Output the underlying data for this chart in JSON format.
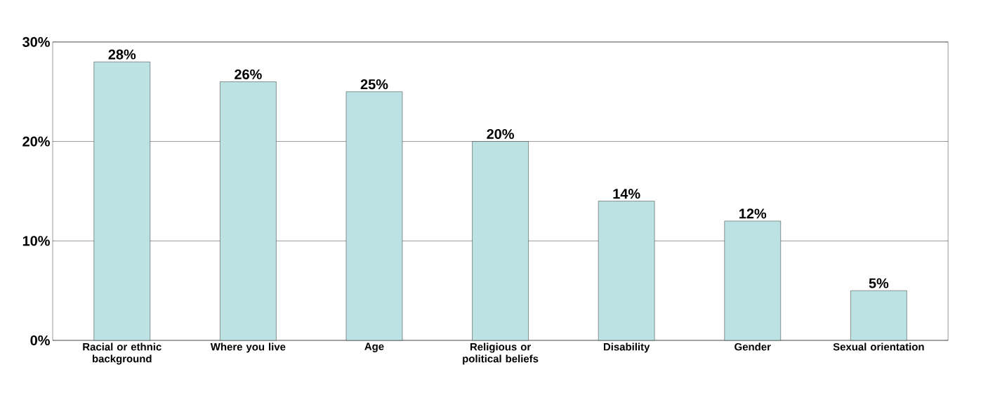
{
  "chart_data": {
    "type": "bar",
    "categories": [
      "Racial or ethnic background",
      "Where you live",
      "Age",
      "Religious or political beliefs",
      "Disability",
      "Gender",
      "Sexual orientation"
    ],
    "values": [
      28,
      26,
      25,
      20,
      14,
      12,
      5
    ],
    "value_labels": [
      "28%",
      "26%",
      "25%",
      "20%",
      "14%",
      "12%",
      "5%"
    ],
    "color": "#bde2e3",
    "ylim": [
      0,
      30
    ],
    "yticks": [
      {
        "value": 0,
        "label": "0%"
      },
      {
        "value": 10,
        "label": "10%"
      },
      {
        "value": 20,
        "label": "20%"
      },
      {
        "value": 30,
        "label": "30%"
      }
    ],
    "grid": "y"
  }
}
